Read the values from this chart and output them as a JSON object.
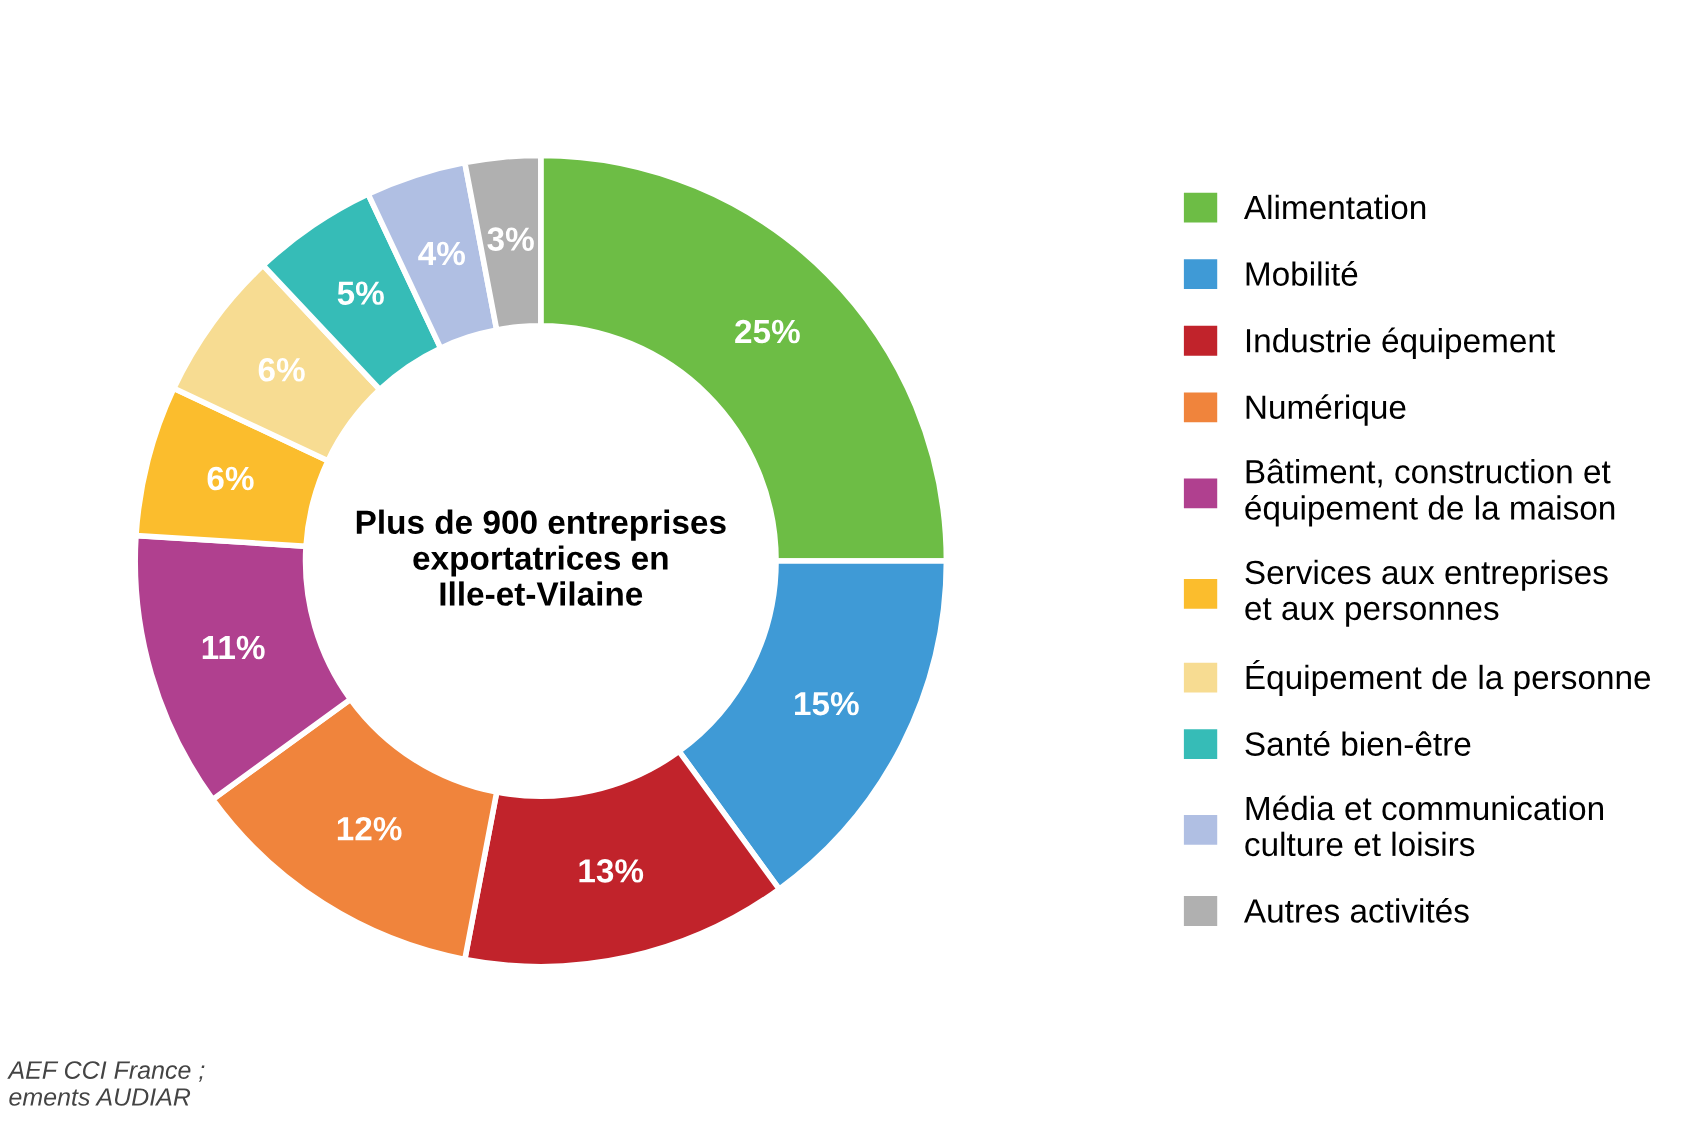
{
  "chart_data": {
    "type": "donut",
    "categories": [
      "Alimentation",
      "Mobilité",
      "Industrie équipement",
      "Numérique",
      "Bâtiment, construction et\néquipement de la maison",
      "Services aux entreprises\net aux personnes",
      "Équipement de la personne",
      "Santé bien-être",
      "Média et communication\nculture et loisirs",
      "Autres activités"
    ],
    "values": [
      25,
      15,
      13,
      12,
      11,
      6,
      6,
      5,
      4,
      3
    ],
    "value_labels": [
      "25%",
      "15%",
      "13%",
      "12%",
      "11%",
      "6%",
      "6%",
      "5%",
      "4%",
      "3%"
    ],
    "colors": [
      "#6dbd45",
      "#3f9ad6",
      "#c1232b",
      "#f0843c",
      "#b0408f",
      "#fbbd2d",
      "#f7dc92",
      "#36bcb7",
      "#b0bfe3",
      "#b0b0b0"
    ],
    "legend": "right",
    "annotations": [
      "Plus de 900 entreprises\nexportatrices en\nIlle-et-Vilaine",
      "AEF CCI France ;\nements AUDIAR"
    ]
  }
}
